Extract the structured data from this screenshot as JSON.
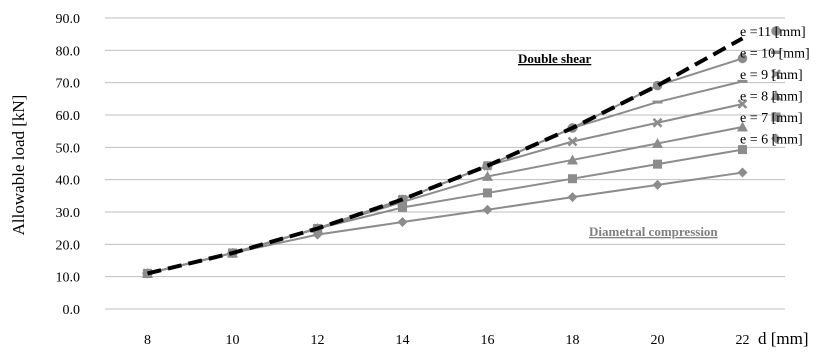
{
  "chart_data": {
    "type": "line",
    "xlabel": "d [mm]",
    "ylabel": "Allowable load [kN]",
    "x": [
      8,
      10,
      12,
      14,
      16,
      18,
      20,
      22
    ],
    "ylim": [
      0,
      90
    ],
    "yticks": [
      "0.0",
      "10.0",
      "20.0",
      "30.0",
      "40.0",
      "50.0",
      "60.0",
      "70.0",
      "80.0",
      "90.0"
    ],
    "grid": "horizontal",
    "legend_placement": "right",
    "series": [
      {
        "name": "e = 6 [mm]",
        "marker": "diamond",
        "color": "#8c8c8c",
        "values": [
          11.0,
          17.3,
          23.0,
          26.9,
          30.7,
          34.6,
          38.4,
          42.2
        ]
      },
      {
        "name": "e = 7 [mm]",
        "marker": "square",
        "color": "#8c8c8c",
        "values": [
          11.0,
          17.3,
          24.9,
          31.4,
          35.9,
          40.3,
          44.8,
          49.3
        ]
      },
      {
        "name": "e = 8 [mm]",
        "marker": "triangle",
        "color": "#8c8c8c",
        "values": [
          11.0,
          17.3,
          24.9,
          33.1,
          41.0,
          46.1,
          51.2,
          56.3
        ]
      },
      {
        "name": "e = 9 [mm]",
        "marker": "x",
        "color": "#8c8c8c",
        "values": [
          11.0,
          17.3,
          24.9,
          33.9,
          44.3,
          51.8,
          57.6,
          63.4
        ]
      },
      {
        "name": "e = 10 [mm]",
        "marker": "dash",
        "color": "#8c8c8c",
        "values": [
          11.0,
          17.3,
          24.9,
          33.9,
          44.3,
          56.0,
          64.0,
          70.4
        ]
      },
      {
        "name": "e =11 [mm]",
        "marker": "circle",
        "color": "#8c8c8c",
        "values": [
          11.0,
          17.3,
          24.9,
          33.9,
          44.3,
          56.0,
          69.1,
          77.5
        ]
      },
      {
        "name": "Double shear",
        "marker": "none",
        "color": "#000000",
        "dashed": true,
        "values": [
          11.0,
          17.3,
          24.9,
          33.9,
          44.3,
          56.0,
          69.1,
          83.7
        ]
      }
    ],
    "annotations": [
      {
        "text": "Double shear",
        "color": "#000000"
      },
      {
        "text": "Diametral compression",
        "color": "#7f7f7f"
      }
    ]
  }
}
